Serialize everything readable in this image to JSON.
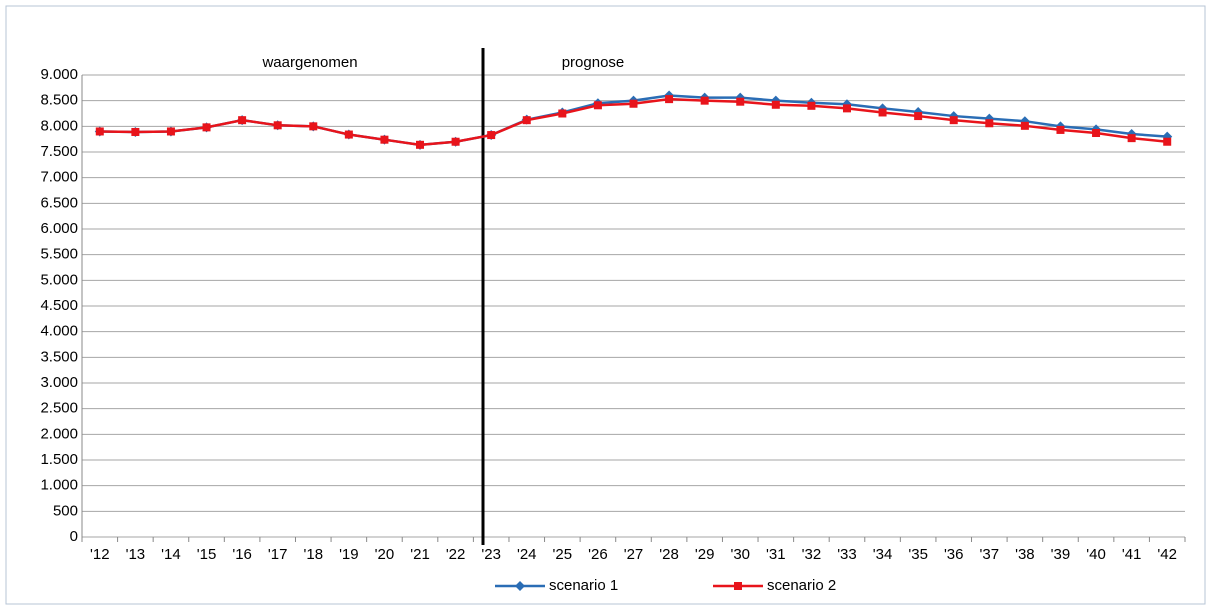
{
  "chart_data": {
    "type": "line",
    "annotations": [
      "waargenomen",
      "prognose"
    ],
    "categories": [
      "'12",
      "'13",
      "'14",
      "'15",
      "'16",
      "'17",
      "'18",
      "'19",
      "'20",
      "'21",
      "'22",
      "'23",
      "'24",
      "'25",
      "'26",
      "'27",
      "'28",
      "'29",
      "'30",
      "'31",
      "'32",
      "'33",
      "'34",
      "'35",
      "'36",
      "'37",
      "'38",
      "'39",
      "'40",
      "'41",
      "'42"
    ],
    "series": [
      {
        "name": "scenario 1",
        "color": "#2a6db5",
        "marker": "diamond",
        "values": [
          7900,
          7890,
          7900,
          7980,
          8120,
          8020,
          8000,
          7840,
          7740,
          7640,
          7700,
          7830,
          8130,
          8270,
          8450,
          8500,
          8600,
          8560,
          8560,
          8500,
          8460,
          8430,
          8350,
          8280,
          8200,
          8150,
          8100,
          8000,
          7940,
          7850,
          7800
        ]
      },
      {
        "name": "scenario 2",
        "color": "#e8141b",
        "marker": "square",
        "values": [
          7900,
          7890,
          7900,
          7980,
          8120,
          8020,
          8000,
          7840,
          7740,
          7640,
          7700,
          7830,
          8120,
          8250,
          8410,
          8440,
          8530,
          8500,
          8480,
          8420,
          8400,
          8350,
          8270,
          8200,
          8120,
          8060,
          8010,
          7930,
          7870,
          7770,
          7700
        ]
      }
    ],
    "ylim": [
      0,
      9000
    ],
    "yticks": [
      0,
      500,
      {
        "value": 1000,
        "label": "1.000"
      },
      {
        "value": 1500,
        "label": "1.500"
      },
      {
        "value": 2000,
        "label": "2.000"
      },
      {
        "value": 2500,
        "label": "2.500"
      },
      {
        "value": 3000,
        "label": "3.000"
      },
      {
        "value": 3500,
        "label": "3.500"
      },
      {
        "value": 4000,
        "label": "4.000"
      },
      {
        "value": 4500,
        "label": "4.500"
      },
      {
        "value": 5000,
        "label": "5.000"
      },
      {
        "value": 5500,
        "label": "5.500"
      },
      {
        "value": 6000,
        "label": "6.000"
      },
      {
        "value": 6500,
        "label": "6.500"
      },
      {
        "value": 7000,
        "label": "7.000"
      },
      {
        "value": 7500,
        "label": "7.500"
      },
      {
        "value": 8000,
        "label": "8.000"
      },
      {
        "value": 8500,
        "label": "8.500"
      },
      {
        "value": 9000,
        "label": "9.000"
      }
    ],
    "grid": true,
    "legend": "bottom"
  }
}
